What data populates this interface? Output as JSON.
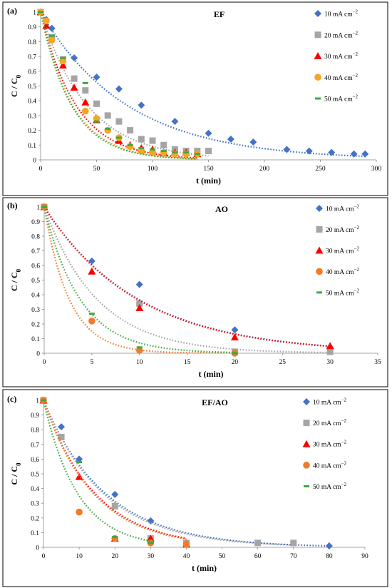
{
  "chart_data": [
    {
      "type": "scatter",
      "panel_label": "(a)",
      "title": "EF",
      "xlabel": "t (min)",
      "ylabel": "C / C",
      "ylabel_sub": "0",
      "xlim": [
        0,
        300
      ],
      "ylim": [
        0,
        1
      ],
      "xticks": [
        0,
        50,
        100,
        150,
        200,
        250,
        300
      ],
      "yticks": [
        0,
        0.1,
        0.2,
        0.3,
        0.4,
        0.5,
        0.6,
        0.7,
        0.8,
        0.9,
        1
      ],
      "ytick_labels": [
        "0",
        "0.1",
        "0.2",
        "0.3",
        "0.4",
        "0.5",
        "0.6",
        "0.7",
        "0.8",
        "0.9",
        "1"
      ],
      "legend_position": "right",
      "series": [
        {
          "name": "10 mA cm",
          "name_sup": "−2",
          "marker": "diamond",
          "color": "#4472C4",
          "fit_k": 0.0129,
          "x": [
            0,
            5,
            10,
            30,
            50,
            70,
            90,
            120,
            150,
            170,
            190,
            220,
            240,
            260,
            280,
            290
          ],
          "y": [
            1.0,
            0.95,
            0.89,
            0.69,
            0.56,
            0.48,
            0.37,
            0.26,
            0.18,
            0.14,
            0.12,
            0.07,
            0.06,
            0.05,
            0.04,
            0.04
          ]
        },
        {
          "name": "20 mA cm",
          "name_sup": "−2",
          "marker": "square",
          "color": "#A5A5A5",
          "fit_k": 0.024,
          "x": [
            0,
            10,
            20,
            30,
            40,
            50,
            60,
            70,
            80,
            90,
            100,
            110,
            120,
            130,
            140,
            150
          ],
          "y": [
            1.0,
            0.83,
            0.68,
            0.55,
            0.47,
            0.38,
            0.3,
            0.26,
            0.2,
            0.14,
            0.13,
            0.1,
            0.07,
            0.06,
            0.06,
            0.06
          ]
        },
        {
          "name": "30 mA cm",
          "name_sup": "−2",
          "marker": "triangle",
          "color": "#FF0000",
          "fit_k": 0.0315,
          "x": [
            0,
            5,
            20,
            30,
            40,
            50,
            70,
            80,
            90,
            100,
            110,
            120,
            130,
            140
          ],
          "y": [
            1.0,
            0.91,
            0.64,
            0.49,
            0.39,
            0.27,
            0.13,
            0.1,
            0.08,
            0.07,
            0.05,
            0.05,
            0.05,
            0.04
          ]
        },
        {
          "name": "40 mA cm",
          "name_sup": "−2",
          "marker": "circle",
          "color": "#F5A623",
          "fit_k": 0.035,
          "x": [
            0,
            5,
            10,
            20,
            40,
            50,
            60,
            70,
            80,
            90,
            100,
            110,
            120,
            130,
            140
          ],
          "y": [
            1.0,
            0.94,
            0.81,
            0.67,
            0.33,
            0.28,
            0.2,
            0.15,
            0.09,
            0.06,
            0.05,
            0.05,
            0.04,
            0.04,
            0.04
          ]
        },
        {
          "name": "50 mA cm",
          "name_sup": "−2",
          "marker": "dash",
          "color": "#3DAA3D",
          "fit_k": 0.036,
          "x": [
            0,
            10,
            20,
            40,
            50,
            60,
            70,
            80,
            90,
            100,
            110,
            120,
            130,
            140
          ],
          "y": [
            1.0,
            0.84,
            0.69,
            0.52,
            0.26,
            0.21,
            0.15,
            0.1,
            0.08,
            0.07,
            0.06,
            0.05,
            0.05,
            0.04
          ]
        }
      ]
    },
    {
      "type": "scatter",
      "panel_label": "(b)",
      "title": "AO",
      "xlabel": "t (min)",
      "ylabel": "C / C",
      "ylabel_sub": "0",
      "xlim": [
        0,
        35
      ],
      "ylim": [
        0,
        1
      ],
      "xticks": [
        0,
        5,
        10,
        15,
        20,
        25,
        30,
        35
      ],
      "yticks": [
        0,
        0.1,
        0.2,
        0.3,
        0.4,
        0.5,
        0.6,
        0.7,
        0.8,
        0.9,
        1
      ],
      "ytick_labels": [
        "0",
        "0.1",
        "0.2",
        "0.3",
        "0.4",
        "0.5",
        "0.6",
        "0.7",
        "0.8",
        "0.9",
        "1"
      ],
      "legend_position": "right",
      "series": [
        {
          "name": "10 mA cm",
          "name_sup": "−2",
          "marker": "diamond",
          "color": "#4472C4",
          "fit_k": 0.101,
          "x": [
            0,
            5,
            10,
            20,
            30
          ],
          "y": [
            1.0,
            0.63,
            0.47,
            0.16,
            0.04
          ]
        },
        {
          "name": "20 mA cm",
          "name_sup": "−2",
          "marker": "square",
          "color": "#A5A5A5",
          "fit_k": 0.18,
          "x": [
            0,
            10,
            20,
            30
          ],
          "y": [
            1.0,
            0.34,
            0.01,
            0.01
          ]
        },
        {
          "name": "30 mA cm",
          "name_sup": "−2",
          "marker": "triangle",
          "color": "#FF0000",
          "fit_k": 0.102,
          "x": [
            0,
            5,
            10,
            20,
            30
          ],
          "y": [
            1.0,
            0.56,
            0.31,
            0.11,
            0.05
          ]
        },
        {
          "name": "40 mA cm",
          "name_sup": "−2",
          "marker": "circle",
          "color": "#F07B2A",
          "fit_k": 0.38,
          "x": [
            0,
            5,
            10,
            20
          ],
          "y": [
            1.0,
            0.22,
            0.02,
            0.0
          ]
        },
        {
          "name": "50 mA cm",
          "name_sup": "−2",
          "marker": "dash",
          "color": "#3DAA3D",
          "fit_k": 0.265,
          "x": [
            0,
            5,
            10,
            20
          ],
          "y": [
            1.0,
            0.27,
            0.04,
            0.0
          ]
        }
      ]
    },
    {
      "type": "scatter",
      "panel_label": "(c)",
      "title": "EF/AO",
      "xlabel": "t (min)",
      "ylabel": "C / C",
      "ylabel_sub": "0",
      "xlim": [
        0,
        90
      ],
      "ylim": [
        0,
        1
      ],
      "xticks": [
        0,
        10,
        20,
        30,
        40,
        50,
        60,
        70,
        80,
        90
      ],
      "yticks": [
        0,
        0.1,
        0.2,
        0.3,
        0.4,
        0.5,
        0.6,
        0.7,
        0.8,
        0.9,
        1
      ],
      "ytick_labels": [
        "0",
        "0.1",
        "0.2",
        "0.3",
        "0.4",
        "0.5",
        "0.6",
        "0.7",
        "0.8",
        "0.9",
        "1"
      ],
      "legend_position": "right",
      "series": [
        {
          "name": "10 mA cm",
          "name_sup": "−2",
          "marker": "diamond",
          "color": "#4472C4",
          "fit_k": 0.058,
          "x": [
            0,
            5,
            10,
            20,
            30,
            40,
            80
          ],
          "y": [
            1.0,
            0.82,
            0.6,
            0.36,
            0.18,
            0.03,
            0.01
          ]
        },
        {
          "name": "20 mA cm",
          "name_sup": "−2",
          "marker": "square",
          "color": "#A5A5A5",
          "fit_k": 0.06,
          "x": [
            0,
            5,
            20,
            30,
            40,
            60,
            70
          ],
          "y": [
            1.0,
            0.75,
            0.28,
            0.06,
            0.03,
            0.03,
            0.03
          ]
        },
        {
          "name": "30 mA cm",
          "name_sup": "−2",
          "marker": "triangle",
          "color": "#FF0000",
          "fit_k": 0.07,
          "x": [
            0,
            10,
            20,
            30,
            40
          ],
          "y": [
            1.0,
            0.48,
            0.06,
            0.06,
            0.02
          ]
        },
        {
          "name": "40 mA cm",
          "name_sup": "−2",
          "marker": "circle",
          "color": "#F07B2A",
          "fit_k": 0.072,
          "x": [
            0,
            10,
            20,
            30,
            40
          ],
          "y": [
            1.0,
            0.24,
            0.06,
            0.03,
            0.02
          ]
        },
        {
          "name": "50 mA cm",
          "name_sup": "−2",
          "marker": "dash",
          "color": "#3DAA3D",
          "fit_k": 0.105,
          "x": [
            0,
            10,
            20,
            30
          ],
          "y": [
            1.0,
            0.58,
            0.07,
            0.03
          ]
        }
      ]
    }
  ]
}
